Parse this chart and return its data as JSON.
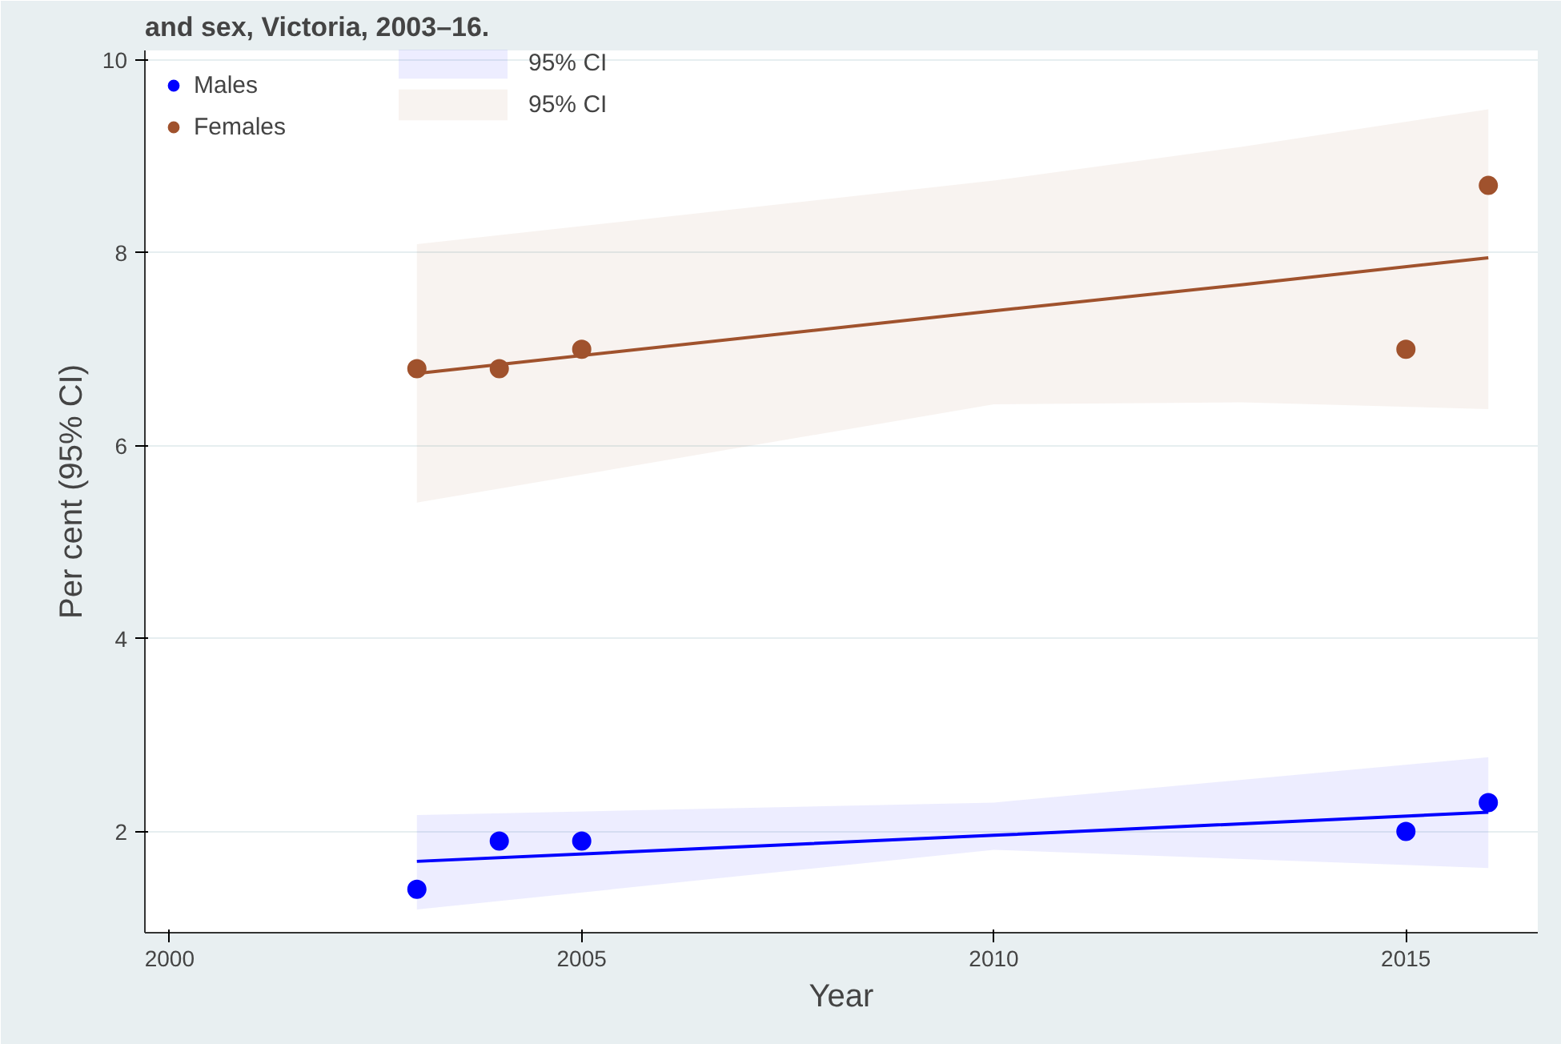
{
  "chart_data": {
    "type": "scatter",
    "title": "and sex, Victoria, 2003–16.",
    "xlabel": "Year",
    "ylabel": "Per cent (95% CI)",
    "xlim": [
      1999.7,
      2016.6
    ],
    "ylim": [
      0.95,
      10.1
    ],
    "xticks": [
      2000,
      2005,
      2010,
      2015
    ],
    "yticks": [
      2,
      4,
      6,
      8,
      10
    ],
    "grid": "y",
    "legend": "top left",
    "series": [
      {
        "name": "Males",
        "marker": "circle",
        "color": "#0000ff",
        "x": [
          2003,
          2004,
          2005,
          2015,
          2016
        ],
        "values": [
          1.4,
          1.9,
          1.9,
          2.0,
          2.3
        ]
      },
      {
        "name": "Females",
        "marker": "circle",
        "color": "#a0522d",
        "x": [
          2003,
          2004,
          2005,
          2015,
          2016
        ],
        "values": [
          6.8,
          6.8,
          7.0,
          7.0,
          8.7
        ]
      },
      {
        "name": "95% CI",
        "type": "line",
        "marker": "none",
        "color": "#0000ff",
        "x": [
          2003,
          2010,
          2016
        ],
        "values": [
          1.69,
          1.96,
          2.2
        ],
        "lower": [
          1.19,
          1.81,
          1.62
        ],
        "upper": [
          2.17,
          2.3,
          2.77
        ]
      },
      {
        "name": "95% CI",
        "type": "line",
        "marker": "none",
        "color": "#a0522d",
        "x": [
          2003,
          2010,
          2013,
          2016
        ],
        "values": [
          6.75,
          7.4,
          7.67,
          7.95
        ],
        "lower": [
          5.41,
          6.43,
          6.45,
          6.38
        ],
        "upper": [
          8.09,
          8.75,
          9.1,
          9.49
        ]
      }
    ]
  }
}
